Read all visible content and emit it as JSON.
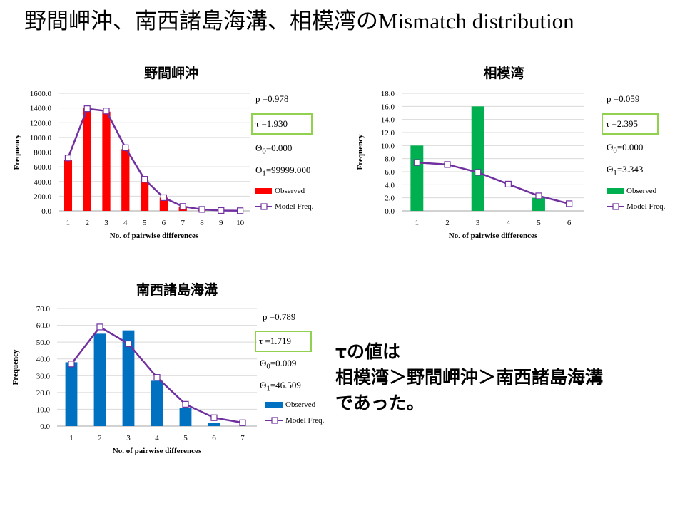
{
  "slide": {
    "title_jp": "野間岬沖、南西諸島海溝、相模湾の",
    "title_latin": "Mismatch distribution",
    "conclusion": [
      "τの値は",
      "相模湾＞野間岬沖＞南西諸島海溝",
      "であった。"
    ]
  },
  "colors": {
    "red": "#ff0000",
    "green": "#00b050",
    "blue": "#0070c0",
    "model": "#7030a0",
    "tau_border": "#92d050"
  },
  "charts": [
    {
      "title": "野間岬沖",
      "p": "p =0.978",
      "tau": "τ =1.930",
      "theta0": "Θ0=0.000",
      "theta1": "Θ1=99999.000",
      "legend_observed": "Observed",
      "legend_model": "Model Freq."
    },
    {
      "title": "相模湾",
      "p": "p =0.059",
      "tau": "τ =2.395",
      "theta0": "Θ0=0.000",
      "theta1": "Θ1=3.343",
      "legend_observed": "Observed",
      "legend_model": "Model Freq."
    },
    {
      "title": "南西諸島海溝",
      "p": "p =0.789",
      "tau": "τ =1.719",
      "theta0": "Θ0=0.009",
      "theta1": "Θ1=46.509",
      "legend_observed": "Observed",
      "legend_model": "Model Freq."
    }
  ],
  "chart_data": [
    {
      "type": "bar",
      "title": "野間岬沖",
      "categories": [
        "1",
        "2",
        "3",
        "4",
        "5",
        "6",
        "7",
        "8",
        "9",
        "10"
      ],
      "series": [
        {
          "name": "Observed",
          "values": [
            690,
            1400,
            1350,
            840,
            420,
            180,
            50,
            10,
            0,
            0
          ]
        },
        {
          "name": "Model Freq.",
          "values": [
            720,
            1390,
            1360,
            860,
            430,
            180,
            60,
            20,
            5,
            2
          ]
        }
      ],
      "xlabel": "No. of pairwise differences",
      "ylabel": "Frequency",
      "ylim": [
        0,
        1600
      ],
      "yticks": [
        "0.0",
        "200.0",
        "400.0",
        "600.0",
        "800.0",
        "1000.0",
        "1200.0",
        "1400.0",
        "1600.0"
      ],
      "grid": true,
      "legend": "right"
    },
    {
      "type": "bar",
      "title": "相模湾",
      "categories": [
        "1",
        "2",
        "3",
        "4",
        "5",
        "6"
      ],
      "series": [
        {
          "name": "Observed",
          "values": [
            10,
            0,
            16,
            0,
            2,
            0
          ]
        },
        {
          "name": "Model Freq.",
          "values": [
            7.4,
            7.1,
            5.9,
            4.1,
            2.3,
            1.1
          ]
        }
      ],
      "xlabel": "No. of pairwise differences",
      "ylabel": "Frequency",
      "ylim": [
        0,
        18
      ],
      "yticks": [
        "0.0",
        "2.0",
        "4.0",
        "6.0",
        "8.0",
        "10.0",
        "12.0",
        "14.0",
        "16.0",
        "18.0"
      ],
      "grid": true,
      "legend": "right"
    },
    {
      "type": "bar",
      "title": "南西諸島海溝",
      "categories": [
        "1",
        "2",
        "3",
        "4",
        "5",
        "6",
        "7"
      ],
      "series": [
        {
          "name": "Observed",
          "values": [
            38,
            55,
            57,
            27,
            11,
            2,
            0
          ]
        },
        {
          "name": "Model Freq.",
          "values": [
            37,
            59,
            49,
            29,
            13,
            5,
            2
          ]
        }
      ],
      "xlabel": "No. of pairwise differences",
      "ylabel": "Frequency",
      "ylim": [
        0,
        70
      ],
      "yticks": [
        "0.0",
        "10.0",
        "20.0",
        "30.0",
        "40.0",
        "50.0",
        "60.0",
        "70.0"
      ],
      "grid": true,
      "legend": "right"
    }
  ]
}
